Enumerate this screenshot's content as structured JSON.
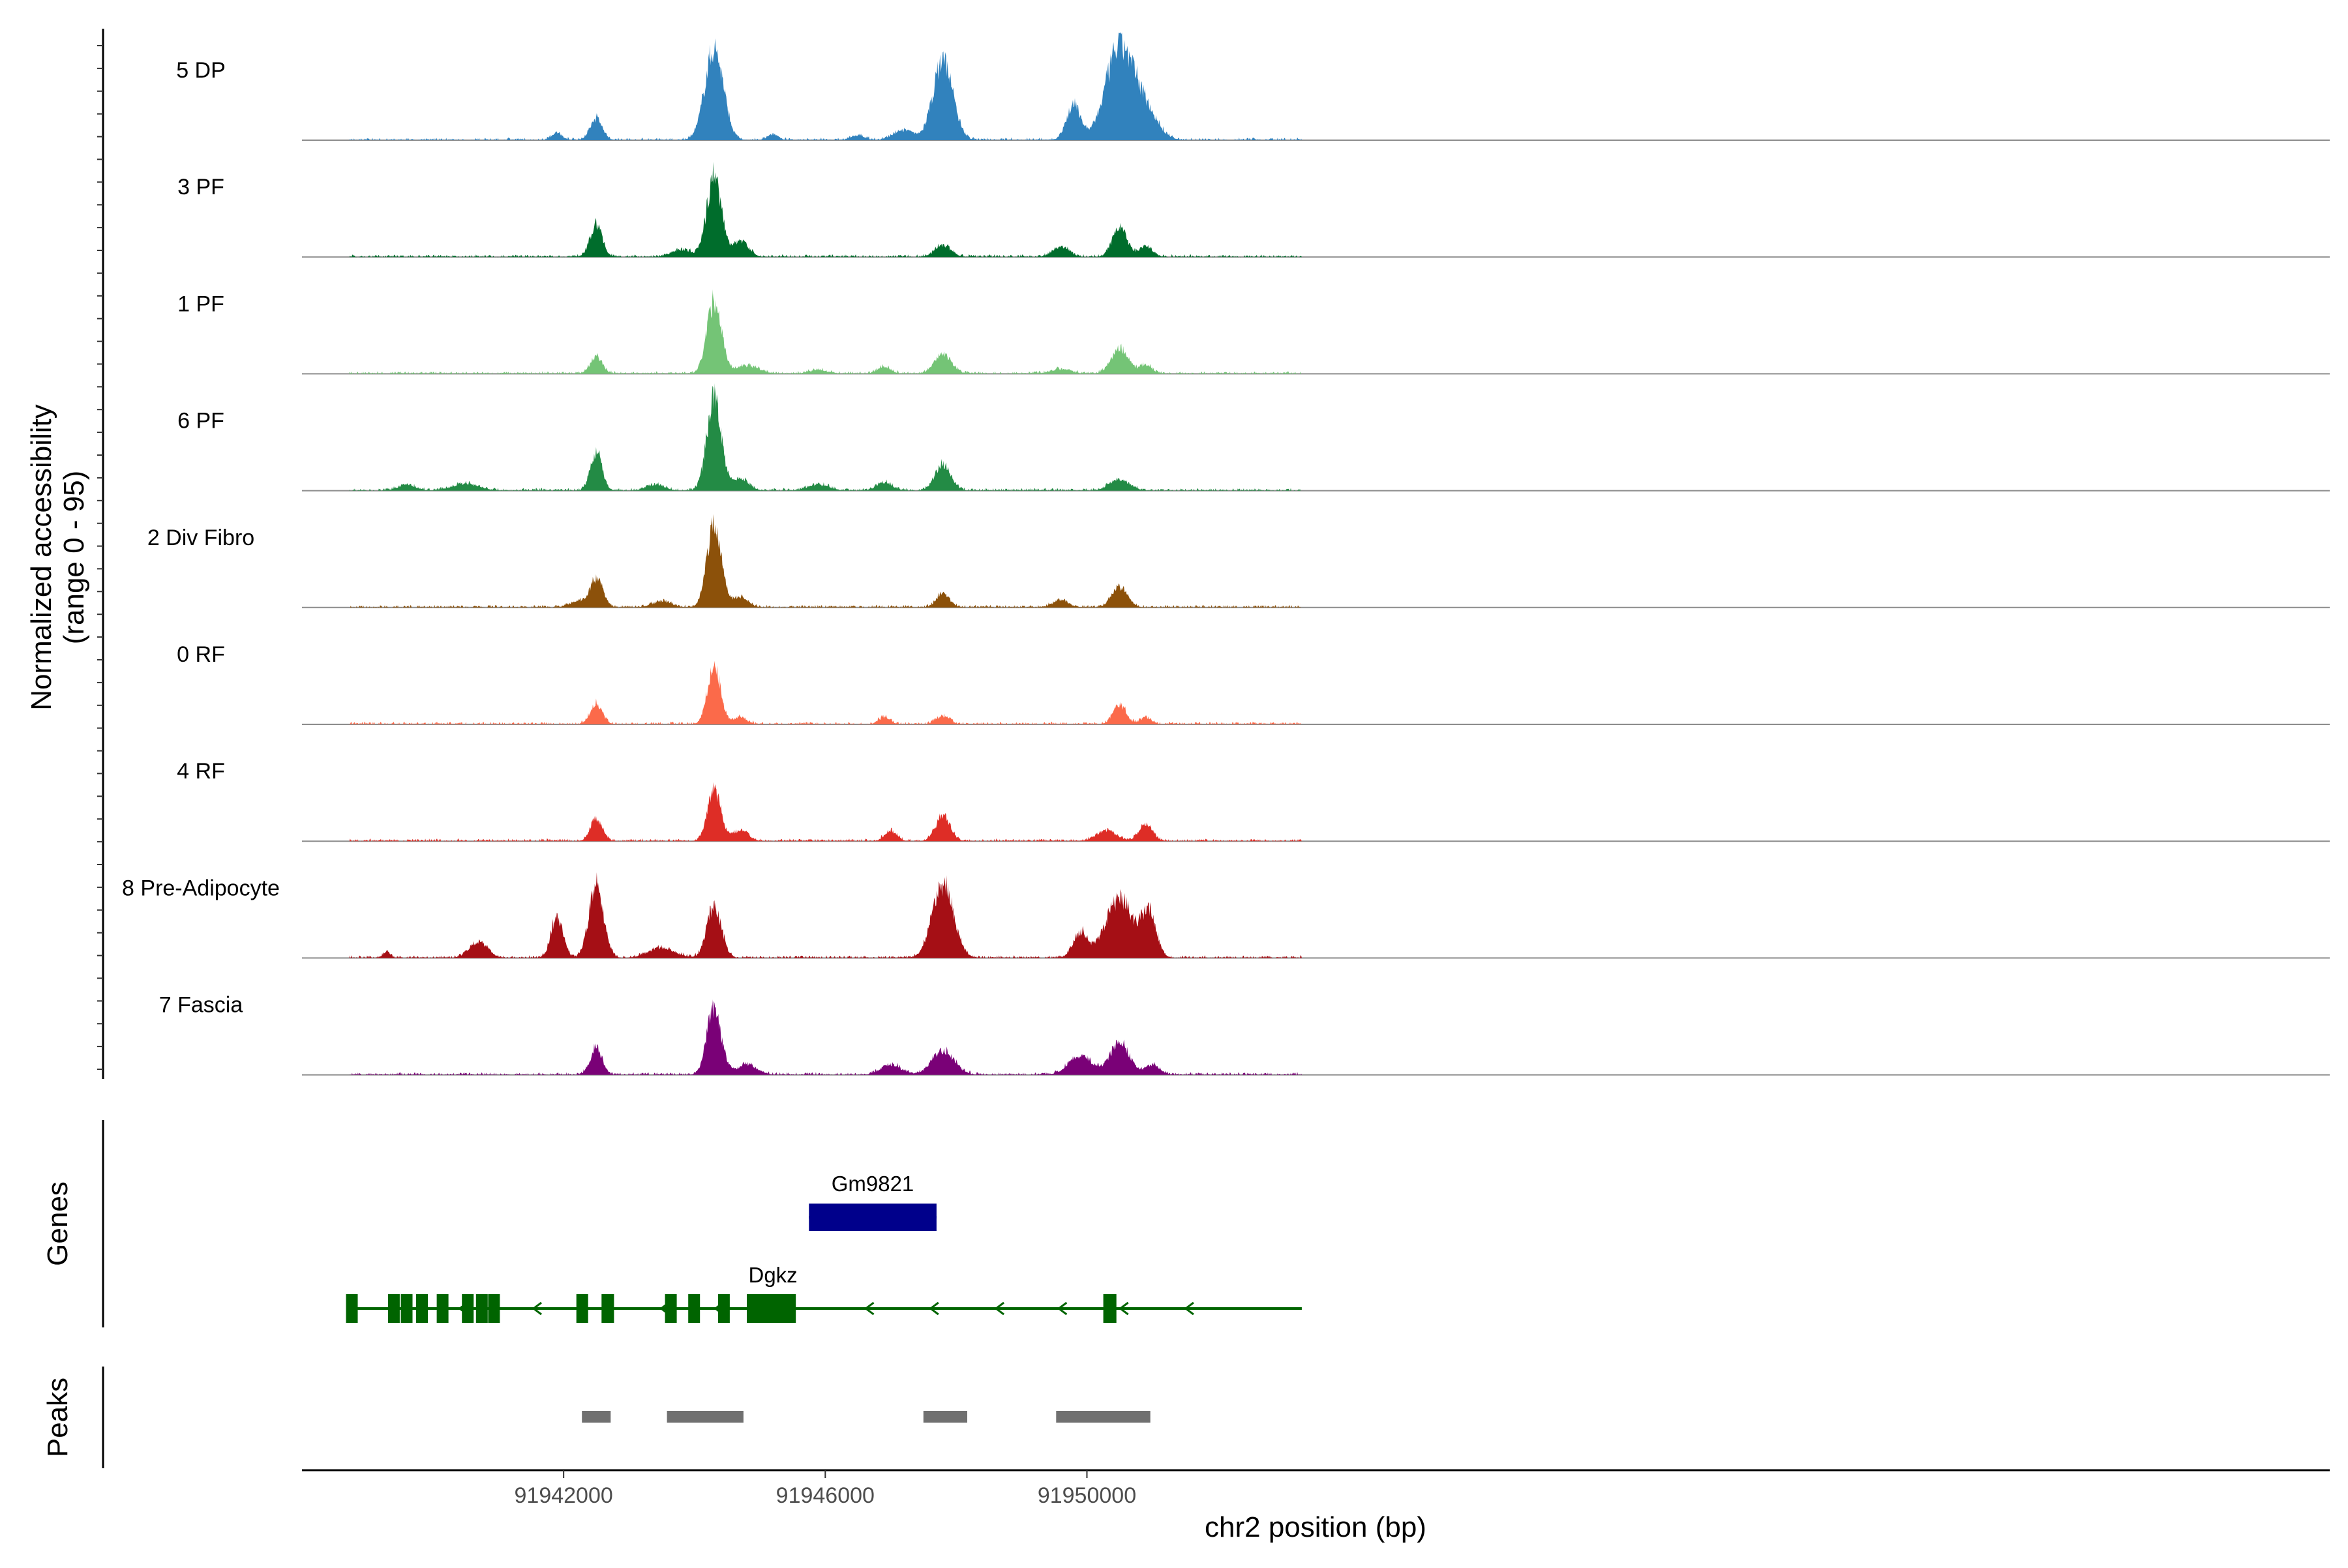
{
  "chart_data": {
    "type": "area",
    "title": "",
    "xlabel": "chr2 position (bp)",
    "ylabel": "Normalized accessibility",
    "ylabel_range": "(range 0 - 95)",
    "ylim": [
      0,
      95
    ],
    "xlim": [
      91938000,
      91969000
    ],
    "x_ticks": [
      91942000,
      91946000,
      91950000
    ],
    "x_tick_labels": [
      "91942000",
      "91946000",
      "91950000"
    ],
    "x_start": 91938726,
    "x_end": 91953285,
    "noise_scale": 3,
    "groups": [
      {
        "name": "5 DP",
        "color": "#3182bd",
        "peaks": [
          [
            91941900,
            7,
            70
          ],
          [
            91942500,
            19,
            90
          ],
          [
            91944300,
            80,
            140
          ],
          [
            91945200,
            5,
            80
          ],
          [
            91946500,
            4,
            100
          ],
          [
            91947200,
            9,
            150
          ],
          [
            91947800,
            70,
            150
          ],
          [
            91949800,
            30,
            110
          ],
          [
            91950500,
            82,
            210
          ],
          [
            91950900,
            24,
            180
          ]
        ]
      },
      {
        "name": "3 PF",
        "color": "#006d2c",
        "peaks": [
          [
            91942500,
            29,
            90
          ],
          [
            91943800,
            6,
            150
          ],
          [
            91944300,
            72,
            110
          ],
          [
            91944700,
            14,
            120
          ],
          [
            91947800,
            10,
            120
          ],
          [
            91949600,
            9,
            120
          ],
          [
            91950500,
            26,
            110
          ],
          [
            91950900,
            9,
            100
          ]
        ]
      },
      {
        "name": "1 PF",
        "color": "#74c476",
        "peaks": [
          [
            91942500,
            15,
            90
          ],
          [
            91944300,
            64,
            110
          ],
          [
            91944800,
            7,
            180
          ],
          [
            91945900,
            3,
            150
          ],
          [
            91946900,
            6,
            100
          ],
          [
            91947800,
            17,
            130
          ],
          [
            91949600,
            4,
            150
          ],
          [
            91950500,
            22,
            130
          ],
          [
            91950900,
            8,
            90
          ]
        ]
      },
      {
        "name": "6 PF",
        "color": "#238b45",
        "peaks": [
          [
            91939600,
            5,
            130
          ],
          [
            91940500,
            6,
            200
          ],
          [
            91942500,
            33,
            90
          ],
          [
            91943400,
            5,
            140
          ],
          [
            91944300,
            82,
            110
          ],
          [
            91944700,
            10,
            130
          ],
          [
            91945900,
            5,
            160
          ],
          [
            91946900,
            7,
            120
          ],
          [
            91947800,
            23,
            120
          ],
          [
            91950500,
            10,
            150
          ]
        ]
      },
      {
        "name": "2 Div Fibro",
        "color": "#8c510a",
        "peaks": [
          [
            91942500,
            25,
            100
          ],
          [
            91942200,
            5,
            120
          ],
          [
            91943500,
            5,
            150
          ],
          [
            91944300,
            72,
            110
          ],
          [
            91944700,
            9,
            120
          ],
          [
            91947800,
            12,
            100
          ],
          [
            91949600,
            6,
            120
          ],
          [
            91950500,
            18,
            120
          ]
        ]
      },
      {
        "name": "0 RF",
        "color": "#fb6a4a",
        "peaks": [
          [
            91942500,
            18,
            90
          ],
          [
            91944300,
            50,
            100
          ],
          [
            91944700,
            6,
            100
          ],
          [
            91946900,
            6,
            90
          ],
          [
            91947800,
            7,
            100
          ],
          [
            91950500,
            17,
            100
          ],
          [
            91950900,
            5,
            90
          ]
        ]
      },
      {
        "name": "4 RF",
        "color": "#de2d26",
        "peaks": [
          [
            91942500,
            19,
            90
          ],
          [
            91944300,
            45,
            100
          ],
          [
            91944700,
            9,
            120
          ],
          [
            91947000,
            9,
            90
          ],
          [
            91947800,
            22,
            110
          ],
          [
            91950300,
            9,
            150
          ],
          [
            91950900,
            15,
            100
          ]
        ]
      },
      {
        "name": "8 Pre-Adipocyte",
        "color": "#a50f15",
        "peaks": [
          [
            91941900,
            36,
            90
          ],
          [
            91942500,
            64,
            110
          ],
          [
            91944300,
            45,
            110
          ],
          [
            91943500,
            9,
            200
          ],
          [
            91947800,
            66,
            160
          ],
          [
            91949900,
            22,
            110
          ],
          [
            91950500,
            52,
            210
          ],
          [
            91950950,
            38,
            110
          ],
          [
            91940700,
            14,
            140
          ],
          [
            91939300,
            6,
            50
          ]
        ]
      },
      {
        "name": "7 Fascia",
        "color": "#7a0177",
        "peaks": [
          [
            91942500,
            24,
            90
          ],
          [
            91944300,
            58,
            110
          ],
          [
            91944800,
            9,
            150
          ],
          [
            91947000,
            9,
            150
          ],
          [
            91947800,
            21,
            170
          ],
          [
            91949900,
            16,
            180
          ],
          [
            91950500,
            28,
            150
          ],
          [
            91951000,
            9,
            110
          ]
        ]
      }
    ],
    "genes_label": "Genes",
    "peaks_label": "Peaks",
    "genes": [
      {
        "name": "Gm9821",
        "start": 91945750,
        "end": 91947700,
        "strand": "-",
        "color": "#00008b",
        "exons": [
          [
            91945750,
            91947700
          ]
        ]
      },
      {
        "name": "Dgkz",
        "start": 91938726,
        "end": 91953285,
        "strand": "-",
        "color": "#006400",
        "exons": [
          [
            91938726,
            91938800
          ],
          [
            91939330,
            91939480
          ],
          [
            91939550,
            91939650
          ],
          [
            91939800,
            91939870
          ],
          [
            91940100,
            91940200
          ],
          [
            91940500,
            91940570
          ],
          [
            91940690,
            91940810
          ],
          [
            91940900,
            91940970
          ],
          [
            91942250,
            91942320
          ],
          [
            91942580,
            91942770
          ],
          [
            91943600,
            91943680
          ],
          [
            91943950,
            91944040
          ],
          [
            91944400,
            91944500
          ],
          [
            91944800,
            91945550
          ],
          [
            91950250,
            91950450
          ]
        ],
        "arrows": [
          91939570,
          91940470,
          91941600,
          91943550,
          91944380,
          91946680,
          91947670,
          91948670,
          91949630,
          91950570,
          91951570
        ]
      }
    ],
    "peaks": [
      [
        91942280,
        91942720
      ],
      [
        91943580,
        91944750
      ],
      [
        91947500,
        91948170
      ],
      [
        91949530,
        91950970
      ]
    ]
  }
}
